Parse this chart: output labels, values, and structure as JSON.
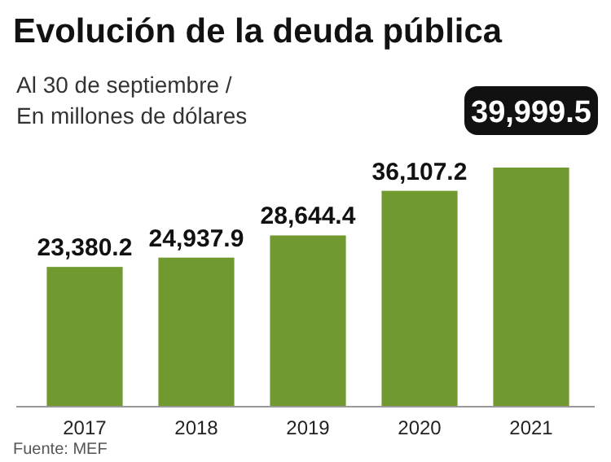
{
  "chart_data": {
    "type": "bar",
    "title": "Evolución de la deuda pública",
    "subtitle": "Al 30 de septiembre /\nEn millones de dólares",
    "categories": [
      "2017",
      "2018",
      "2019",
      "2020",
      "2021"
    ],
    "values": [
      23380.2,
      24937.9,
      28644.4,
      36107.2,
      39999.5
    ],
    "color": "#70992f",
    "tick_labels": "x",
    "value_labels": [
      "23,380.2",
      "24,937.9",
      "28,644.4",
      "36,107.2",
      "39,999.5"
    ],
    "annotations": [
      "Fuente: MEF"
    ]
  }
}
